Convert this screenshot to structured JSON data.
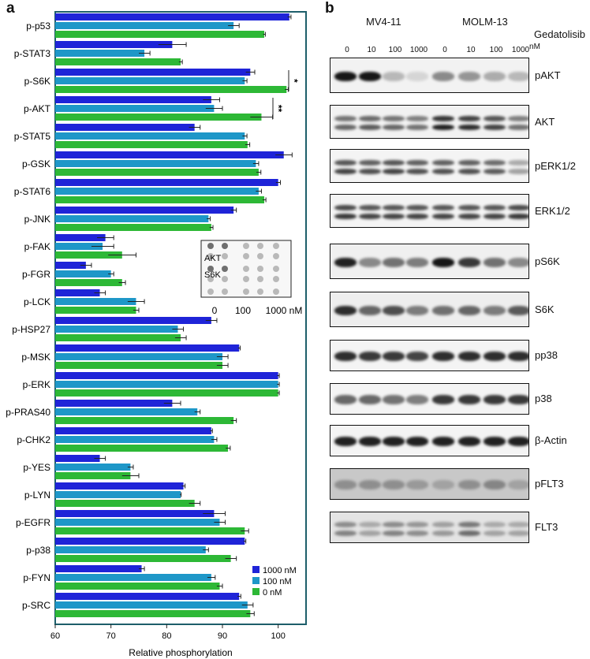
{
  "panel_a_letter": "a",
  "panel_b_letter": "b",
  "chart_data": {
    "type": "bar",
    "orientation": "horizontal",
    "xlabel": "Relative phosphorylation",
    "xlim": [
      60,
      105
    ],
    "xticks": [
      60,
      70,
      80,
      90,
      100
    ],
    "categories": [
      "p-p53",
      "p-STAT3",
      "p-S6K",
      "p-AKT",
      "p-STAT5",
      "p-GSK",
      "p-STAT6",
      "p-JNK",
      "p-FAK",
      "p-FGR",
      "p-LCK",
      "p-HSP27",
      "p-MSK",
      "p-ERK",
      "p-PRAS40",
      "p-CHK2",
      "p-YES",
      "p-LYN",
      "p-EGFR",
      "p-p38",
      "p-FYN",
      "p-SRC"
    ],
    "series": [
      {
        "name": "1000 nM",
        "color": "#1f24d8",
        "values": [
          102,
          81,
          95,
          88,
          85,
          101,
          100,
          92,
          69,
          65.5,
          68,
          88,
          93,
          100,
          81,
          88,
          68,
          83,
          88.5,
          94,
          75.5,
          93
        ],
        "errors": [
          0.3,
          2.5,
          0.8,
          1.5,
          1,
          1.5,
          0.4,
          0.5,
          1.5,
          1,
          1,
          1,
          0.2,
          0.2,
          1.5,
          0.2,
          1,
          0.3,
          2,
          0.2,
          0.5,
          0.3
        ]
      },
      {
        "name": "100 nM",
        "color": "#1e97c8",
        "values": [
          92,
          76,
          94,
          88.5,
          94,
          96,
          96.5,
          87.5,
          68.5,
          70,
          74.5,
          82,
          90,
          100,
          85.5,
          88.5,
          73.5,
          82.5,
          89.5,
          87,
          88,
          94.5
        ],
        "errors": [
          1,
          1,
          0.4,
          1.5,
          0.4,
          0.5,
          0.5,
          0.3,
          2,
          0.5,
          1.5,
          1,
          1,
          0.2,
          0.5,
          0.5,
          0.5,
          0.1,
          1,
          0.5,
          0.7,
          1
        ]
      },
      {
        "name": "0 nM",
        "color": "#2db836",
        "values": [
          97.5,
          82.5,
          101.5,
          97,
          94.5,
          96.5,
          97.5,
          88,
          72,
          72,
          74.5,
          82.5,
          90,
          100,
          92,
          91,
          73.5,
          85,
          94,
          91.5,
          89.5,
          95
        ],
        "errors": [
          0.2,
          0.3,
          0.3,
          2,
          0.4,
          0.4,
          0.3,
          0.3,
          2.5,
          0.6,
          0.5,
          1,
          1,
          0.2,
          0.5,
          0.4,
          1.5,
          1,
          0.7,
          1,
          0.5,
          0.7
        ]
      }
    ],
    "significance": [
      {
        "label": "*",
        "between": "p-S6K 1000 nM vs 0 nM"
      },
      {
        "label": "**",
        "between": "p-AKT 1000 nM vs 0 nM"
      }
    ],
    "legend_position": "bottom-right",
    "inset": {
      "row_labels": [
        "AKT",
        "S6K"
      ],
      "x_labels": [
        "0",
        "100",
        "1000 nM"
      ]
    }
  },
  "western_blot": {
    "cell_lines": [
      "MV4-11",
      "MOLM-13"
    ],
    "drug": "Gedatolisib",
    "unit": "nM",
    "concentrations": [
      "0",
      "10",
      "100",
      "1000",
      "0",
      "10",
      "100",
      "1000"
    ],
    "rows": [
      {
        "label": "pAKT",
        "intensity": [
          0.95,
          0.95,
          0.25,
          0.12,
          0.45,
          0.4,
          0.3,
          0.25
        ],
        "double": false,
        "bg": "#f2f2f2"
      },
      {
        "label": "AKT",
        "intensity": [
          0.6,
          0.65,
          0.6,
          0.55,
          0.9,
          0.85,
          0.75,
          0.55
        ],
        "double": true,
        "bg": "#f2f2f2"
      },
      {
        "label": "pERK1/2",
        "intensity": [
          0.75,
          0.7,
          0.75,
          0.7,
          0.7,
          0.7,
          0.65,
          0.35
        ],
        "double": true,
        "bg": "#f4f4f4"
      },
      {
        "label": "ERK1/2",
        "intensity": [
          0.8,
          0.75,
          0.75,
          0.75,
          0.75,
          0.75,
          0.75,
          0.8
        ],
        "double": true,
        "bg": "#f4f4f4"
      },
      {
        "label": "pS6K",
        "intensity": [
          0.9,
          0.45,
          0.55,
          0.5,
          0.95,
          0.8,
          0.55,
          0.45
        ],
        "double": false,
        "bg": "#f0f0f0"
      },
      {
        "label": "S6K",
        "intensity": [
          0.85,
          0.6,
          0.7,
          0.5,
          0.55,
          0.6,
          0.5,
          0.65
        ],
        "double": false,
        "bg": "#eeeeee"
      },
      {
        "label": "pp38",
        "intensity": [
          0.85,
          0.8,
          0.8,
          0.75,
          0.85,
          0.85,
          0.85,
          0.85
        ],
        "double": false,
        "bg": "#f4f4f4"
      },
      {
        "label": "p38",
        "intensity": [
          0.6,
          0.6,
          0.55,
          0.5,
          0.8,
          0.8,
          0.8,
          0.8
        ],
        "double": false,
        "bg": "#f4f4f4"
      },
      {
        "label": "β-Actin",
        "intensity": [
          0.9,
          0.9,
          0.9,
          0.9,
          0.9,
          0.9,
          0.9,
          0.9
        ],
        "double": false,
        "bg": "#f4f4f4"
      },
      {
        "label": "pFLT3",
        "intensity": [
          0.3,
          0.3,
          0.3,
          0.25,
          0.2,
          0.3,
          0.35,
          0.2
        ],
        "double": false,
        "bg": "#c8c8c8"
      },
      {
        "label": "FLT3",
        "intensity": [
          0.45,
          0.3,
          0.45,
          0.4,
          0.35,
          0.55,
          0.3,
          0.3
        ],
        "double": true,
        "bg": "#e4e4e4"
      }
    ]
  }
}
